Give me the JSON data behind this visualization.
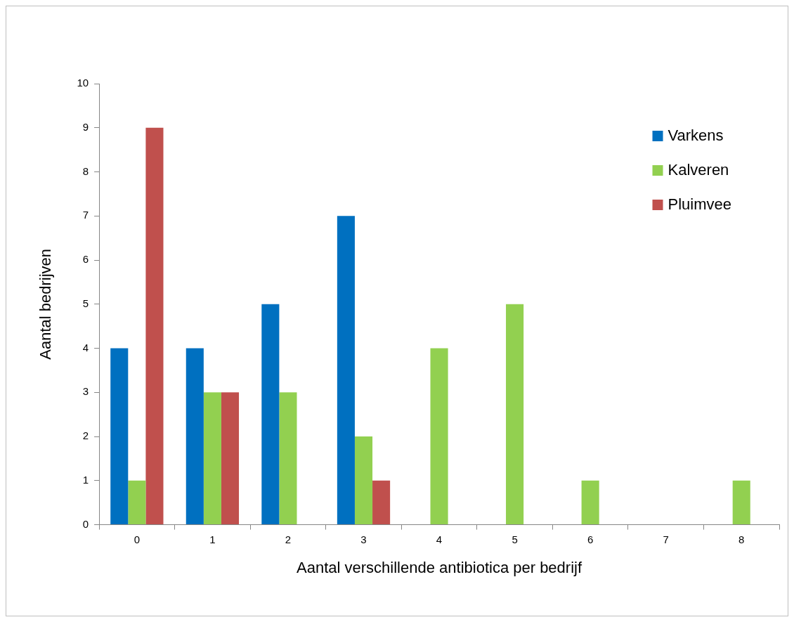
{
  "chart_data": {
    "type": "bar",
    "xlabel": "Aantal verschillende antibiotica per bedrijf",
    "ylabel": "Aantal bedrijven",
    "categories": [
      "0",
      "1",
      "2",
      "3",
      "4",
      "5",
      "6",
      "7",
      "8"
    ],
    "series": [
      {
        "name": "Varkens",
        "color": "#0070c0",
        "values": [
          4,
          4,
          5,
          7,
          null,
          null,
          null,
          null,
          null
        ]
      },
      {
        "name": "Kalveren",
        "color": "#92d050",
        "values": [
          1,
          3,
          3,
          2,
          4,
          5,
          1,
          null,
          1
        ]
      },
      {
        "name": "Pluimvee",
        "color": "#c0504d",
        "values": [
          9,
          3,
          null,
          1,
          null,
          null,
          null,
          null,
          null
        ]
      }
    ],
    "ylim": [
      0,
      10
    ],
    "yticks": [
      0,
      1,
      2,
      3,
      4,
      5,
      6,
      7,
      8,
      9,
      10
    ],
    "grid": false,
    "legend": "top right"
  }
}
